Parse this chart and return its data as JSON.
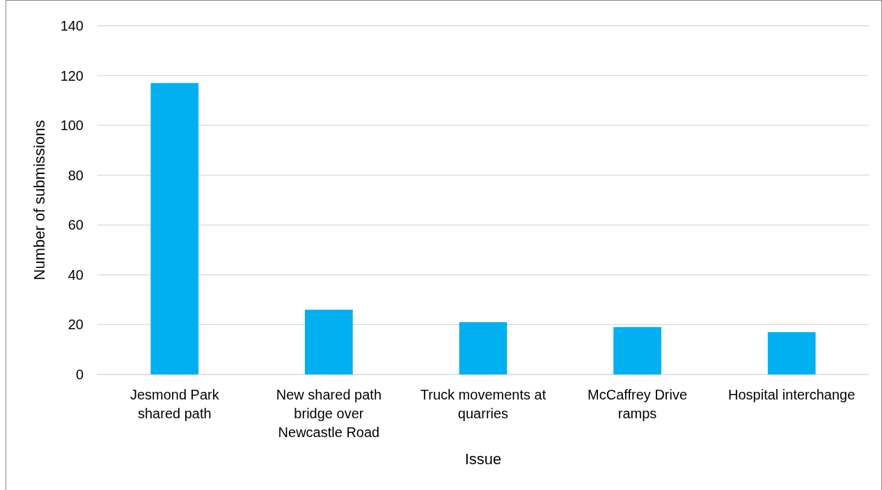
{
  "chart_data": {
    "type": "bar",
    "xlabel": "Issue",
    "ylabel": "Number of submissions",
    "categories": [
      "Jesmond Park shared path",
      "New shared path bridge over Newcastle Road",
      "Truck movements at quarries",
      "McCaffrey Drive ramps",
      "Hospital interchange"
    ],
    "values": [
      117,
      26,
      21,
      19,
      17
    ],
    "color": "#00b0f0",
    "ylim": [
      0,
      140
    ],
    "yticks": [
      0,
      20,
      40,
      60,
      80,
      100,
      120,
      140
    ],
    "grid": "y"
  }
}
